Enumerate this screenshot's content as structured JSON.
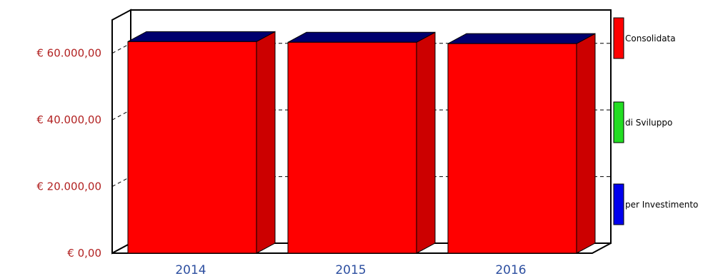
{
  "chart_data": {
    "type": "bar",
    "categories": [
      "2014",
      "2015",
      "2016"
    ],
    "series": [
      {
        "name": "Consolidata",
        "values": [
          63500,
          63300,
          62900
        ],
        "color": "#ff0000"
      },
      {
        "name": "di Sviluppo",
        "values": [
          0,
          0,
          0
        ],
        "color": "#22dd22"
      },
      {
        "name": "per Investimento",
        "values": [
          0,
          0,
          0
        ],
        "color": "#0000ee"
      }
    ],
    "ylim": [
      0,
      70000
    ],
    "yticks": [
      0,
      20000,
      40000,
      60000
    ],
    "ytick_labels": [
      "€ 0,00",
      "€ 20.000,00",
      "€ 40.000,00",
      "€ 60.000,00"
    ],
    "xlabel": "",
    "ylabel": "",
    "title": "",
    "legend_position": "right",
    "style": "3d",
    "grid": true
  }
}
